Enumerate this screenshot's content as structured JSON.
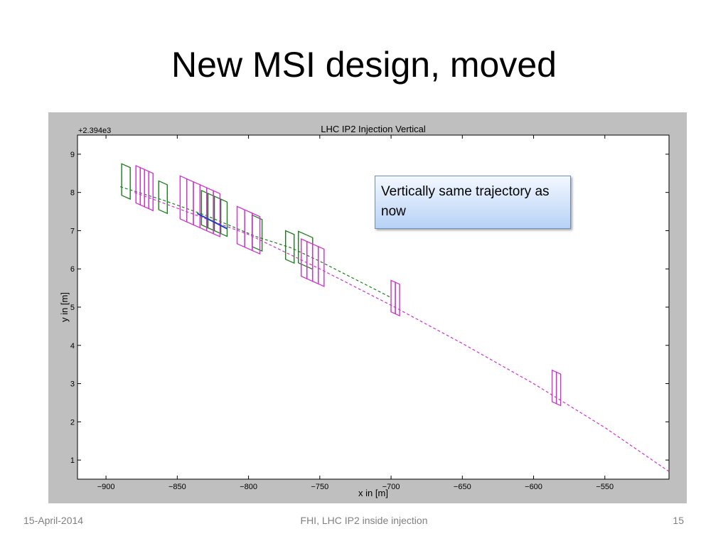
{
  "slide": {
    "title": "New MSI design, moved",
    "callout": "Vertically same trajectory as now",
    "footer_left": "15-April-2014",
    "footer_center": "FHI, LHC IP2 inside injection",
    "footer_right": "15"
  },
  "colors": {
    "green": "#1a7f1a",
    "magenta": "#cc33cc",
    "blue": "#1f3fbf",
    "frame_gray": "#bfbfbf"
  },
  "chart_data": {
    "type": "line",
    "title": "LHC IP2 Injection Vertical",
    "xlabel": "x in [m]",
    "ylabel": "y in [m]",
    "y_offset_label": "+2.394e3",
    "xlim": [
      -920,
      -505
    ],
    "ylim": [
      0.5,
      9.5
    ],
    "x_ticks": [
      -900,
      -850,
      -800,
      -750,
      -700,
      -650,
      -600,
      -550
    ],
    "y_ticks": [
      1,
      2,
      3,
      4,
      5,
      6,
      7,
      8,
      9
    ],
    "grid": false,
    "series": [
      {
        "color": "#1a7f1a",
        "style": "dashed",
        "x": [
          -890,
          -860,
          -830,
          -795,
          -770,
          -750,
          -700
        ],
        "y": [
          8.15,
          7.8,
          7.4,
          6.85,
          6.55,
          6.2,
          5.25
        ],
        "magnets": [
          {
            "x": -886,
            "y": 8.15,
            "w": 6,
            "h": 0.55,
            "n": 1
          },
          {
            "x": -860,
            "y": 7.75,
            "w": 6,
            "h": 0.5,
            "n": 1
          },
          {
            "x": -824,
            "y": 7.3,
            "w": 18,
            "h": 0.6,
            "n": 4
          },
          {
            "x": -794,
            "y": 6.8,
            "w": 7,
            "h": 0.55,
            "n": 1
          },
          {
            "x": -771,
            "y": 6.45,
            "w": 6,
            "h": 0.5,
            "n": 1
          },
          {
            "x": -760,
            "y": 6.35,
            "w": 10,
            "h": 0.55,
            "n": 1
          }
        ]
      },
      {
        "color": "#cc33cc",
        "style": "dashed",
        "x": [
          -880,
          -800,
          -750,
          -700,
          -650,
          -600,
          -550,
          -505
        ],
        "y": [
          8.0,
          6.9,
          6.0,
          5.05,
          4.05,
          3.0,
          1.85,
          0.7
        ],
        "magnets": [
          {
            "x": -873,
            "y": 7.95,
            "w": 12,
            "h": 0.65,
            "n": 4
          },
          {
            "x": -834,
            "y": 7.45,
            "w": 28,
            "h": 0.75,
            "n": 6
          },
          {
            "x": -800,
            "y": 6.85,
            "w": 16,
            "h": 0.65,
            "n": 3
          },
          {
            "x": -755,
            "y": 6.0,
            "w": 16,
            "h": 0.65,
            "n": 4
          },
          {
            "x": -697,
            "y": 5.1,
            "w": 6,
            "h": 0.55,
            "n": 2
          },
          {
            "x": -584,
            "y": 2.75,
            "w": 6,
            "h": 0.55,
            "n": 2
          }
        ]
      },
      {
        "color": "#1f3fbf",
        "style": "solid",
        "x": [
          -836,
          -815
        ],
        "y": [
          7.45,
          7.05
        ],
        "magnets": []
      }
    ]
  }
}
